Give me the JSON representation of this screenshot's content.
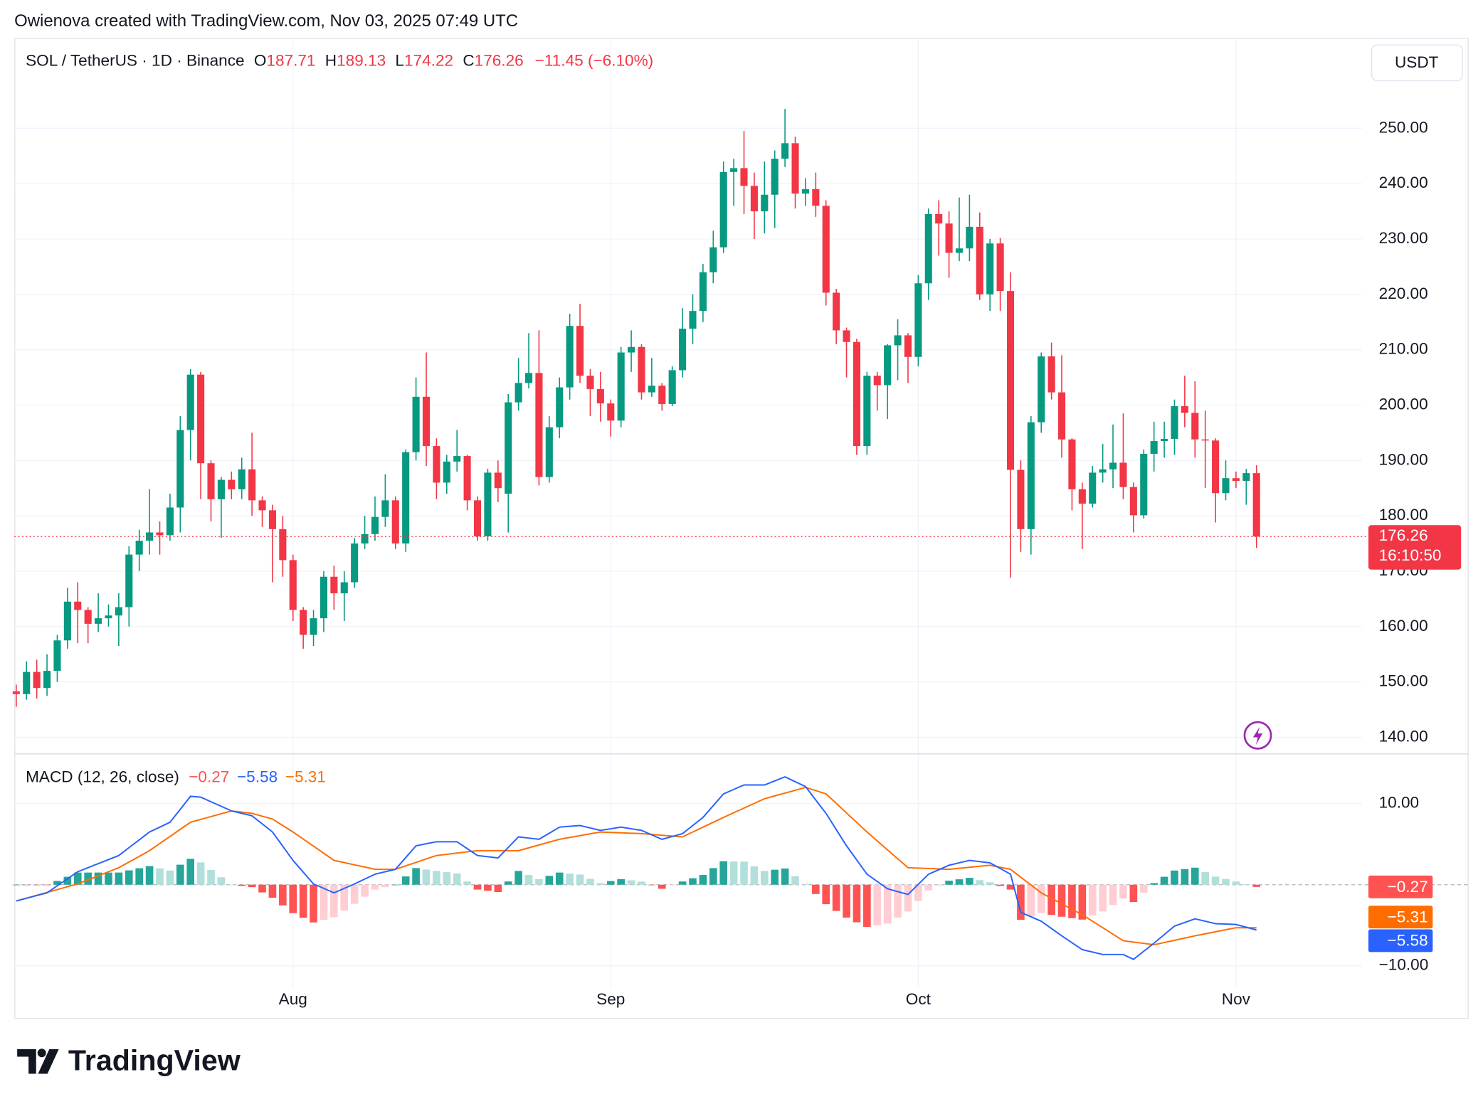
{
  "attribution": "Owienova created with TradingView.com, Nov 03, 2025 07:49 UTC",
  "logo_text": "TradingView",
  "chart_data": [
    {
      "type": "candlestick",
      "title": "SOL / TetherUS · 1D · Binance",
      "ohlc_labels": [
        "O",
        "H",
        "L",
        "C"
      ],
      "change": "−11.45 (−6.10%)",
      "currency": "USDT",
      "countdown": "16:10:50",
      "up_color": "#089981",
      "down_color": "#f23645",
      "grid": true,
      "ylim": [
        137.1,
        266
      ],
      "yticks": [
        {
          "value": 140,
          "label": "140.00"
        },
        {
          "value": 150,
          "label": "150.00"
        },
        {
          "value": 160,
          "label": "160.00"
        },
        {
          "value": 170,
          "label": "170.00"
        },
        {
          "value": 180,
          "label": "180.00"
        },
        {
          "value": 190,
          "label": "190.00"
        },
        {
          "value": 200,
          "label": "200.00"
        },
        {
          "value": 210,
          "label": "210.00"
        },
        {
          "value": 220,
          "label": "220.00"
        },
        {
          "value": 230,
          "label": "230.00"
        },
        {
          "value": 240,
          "label": "240.00"
        },
        {
          "value": 250,
          "label": "250.00"
        }
      ],
      "categories": [
        null,
        null,
        null,
        null,
        null,
        null,
        null,
        null,
        null,
        null,
        null,
        null,
        null,
        null,
        null,
        null,
        null,
        null,
        null,
        null,
        null,
        null,
        null,
        null,
        null,
        null,
        null,
        "Aug",
        null,
        null,
        null,
        null,
        null,
        null,
        null,
        null,
        null,
        null,
        null,
        null,
        null,
        null,
        null,
        null,
        null,
        null,
        null,
        null,
        null,
        null,
        null,
        null,
        null,
        null,
        null,
        null,
        null,
        null,
        "Sep",
        null,
        null,
        null,
        null,
        null,
        null,
        null,
        null,
        null,
        null,
        null,
        null,
        null,
        null,
        null,
        null,
        null,
        null,
        null,
        null,
        null,
        null,
        null,
        null,
        null,
        null,
        null,
        null,
        null,
        "Oct",
        null,
        null,
        null,
        null,
        null,
        null,
        null,
        null,
        null,
        null,
        null,
        null,
        null,
        null,
        null,
        null,
        null,
        null,
        null,
        null,
        null,
        null,
        null,
        null,
        null,
        null,
        null,
        null,
        null,
        null,
        "Nov",
        null,
        null
      ],
      "open": [
        148.3,
        147.8,
        151.8,
        148.9,
        152,
        157.5,
        164.5,
        163,
        160.5,
        161.5,
        162,
        163.5,
        173,
        175.5,
        177,
        176.5,
        181.5,
        195.5,
        205.5,
        189.5,
        183,
        186.5,
        184.8,
        188.4,
        182.8,
        181,
        177.6,
        172,
        163,
        158.5,
        161.5,
        169,
        166,
        168,
        175,
        176.7,
        179.8,
        182.8,
        175,
        191.5,
        201.5,
        192.6,
        186,
        189.8,
        190.8,
        182.8,
        176.3,
        187.8,
        184,
        200.5,
        204,
        205.8,
        187,
        196,
        203.2,
        214.3,
        205.3,
        202.9,
        200.3,
        197.2,
        209.5,
        210.5,
        202.3,
        203.5,
        200.2,
        206.3,
        213.8,
        217,
        224,
        228.5,
        242.1,
        242.8,
        239.6,
        235,
        238,
        244.5,
        247.3,
        238.2,
        239,
        236,
        220.3,
        213.5,
        211.4,
        192.6,
        205.3,
        203.6,
        210.8,
        212.6,
        208.7,
        222,
        234.5,
        232.8,
        227.5,
        228.3,
        232.2,
        220,
        229.2,
        220.6,
        188.3,
        177.6,
        196.9,
        208.8,
        202.3,
        193.8,
        184.8,
        182.2,
        187.8,
        188.4,
        189.6,
        185.2,
        180.1,
        191.2,
        193.5,
        193.9,
        199.8,
        198.6,
        193.8,
        193.6,
        184.1,
        186.8,
        186.3,
        187.71
      ],
      "high": [
        149.5,
        153.7,
        154,
        155,
        158.5,
        167,
        168,
        163.5,
        166,
        164,
        166,
        174.5,
        177.5,
        184.8,
        179,
        184,
        198,
        206.5,
        206,
        190,
        187,
        188,
        190.5,
        195,
        183.5,
        182,
        180,
        173,
        163.5,
        163,
        170,
        171,
        170,
        176,
        180,
        183.5,
        187.5,
        183.5,
        192,
        205,
        209.5,
        194,
        191,
        195.5,
        191,
        183.5,
        188.5,
        190,
        202,
        208.5,
        213,
        213.5,
        198,
        205,
        216.5,
        218.3,
        206.5,
        206,
        201,
        210.5,
        213.5,
        211,
        208.5,
        204,
        207,
        217.5,
        220,
        225.5,
        231.5,
        244,
        244.5,
        249.5,
        242,
        244,
        246,
        253.5,
        248.5,
        241,
        242,
        237,
        221,
        214,
        212,
        206,
        206,
        211,
        215.5,
        213,
        223.5,
        235.5,
        237,
        235,
        237.5,
        238,
        234.8,
        230,
        230.2,
        224,
        190,
        198,
        209.5,
        211.3,
        209,
        194,
        186,
        189,
        193,
        196.5,
        198.5,
        186,
        192,
        197,
        197,
        201,
        205.3,
        204.3,
        199,
        194,
        190,
        188,
        188.5,
        189.13
      ],
      "low": [
        145.5,
        146.8,
        147,
        147.5,
        150,
        156,
        157,
        157,
        159,
        160,
        156.5,
        160,
        170,
        173,
        173,
        175.5,
        177,
        190,
        183,
        179,
        176,
        183,
        183,
        180,
        178,
        168,
        169,
        161,
        156,
        156.5,
        159,
        163,
        161,
        167,
        174,
        175.5,
        178,
        174,
        173.5,
        190,
        189,
        183,
        184,
        188,
        181,
        175.5,
        175.5,
        182.5,
        177,
        199,
        203,
        185.5,
        186,
        194,
        201,
        204,
        198,
        197,
        194.3,
        196,
        206,
        201,
        201.5,
        199,
        199.8,
        205,
        211,
        215,
        222,
        227.5,
        236,
        234.5,
        230,
        231,
        232,
        243,
        235.5,
        236,
        234,
        218,
        211,
        205,
        191,
        191,
        199,
        197.5,
        204.5,
        204,
        207,
        219,
        227,
        223,
        226,
        226,
        219,
        217,
        217,
        168.8,
        173.5,
        173,
        195,
        201,
        190.5,
        181,
        174,
        181.5,
        186,
        185,
        183,
        177,
        179.5,
        188,
        190.5,
        191,
        196,
        190.5,
        185,
        178.8,
        182.8,
        185,
        182,
        174.22
      ],
      "close": [
        147.8,
        151.8,
        148.9,
        152,
        157.5,
        164.5,
        163,
        160.5,
        161.5,
        162,
        163.5,
        173,
        175.5,
        177,
        176.5,
        181.5,
        195.5,
        205.5,
        189.5,
        183,
        186.5,
        184.8,
        188.4,
        182.8,
        181,
        177.6,
        172,
        163,
        158.5,
        161.5,
        169,
        166,
        168,
        175,
        176.7,
        179.8,
        182.8,
        175,
        191.5,
        201.5,
        192.6,
        186,
        189.8,
        190.8,
        182.8,
        176.3,
        187.8,
        185,
        200.5,
        204,
        205.8,
        187,
        196,
        203.2,
        214.3,
        205.3,
        202.9,
        200.3,
        197.2,
        209.5,
        210.5,
        202.3,
        203.5,
        200.2,
        206.3,
        213.8,
        217,
        224,
        228.5,
        242.1,
        242.8,
        239.6,
        235,
        238,
        244.5,
        247.3,
        238.2,
        239,
        236,
        220.3,
        213.5,
        211.4,
        192.6,
        205.3,
        203.6,
        210.8,
        212.6,
        208.7,
        222,
        234.5,
        232.8,
        227.5,
        228.3,
        232.2,
        220,
        229.2,
        220.6,
        188.3,
        177.6,
        196.9,
        208.8,
        202.3,
        193.8,
        184.8,
        182.2,
        187.8,
        188.4,
        189.6,
        185.2,
        180.1,
        191.2,
        193.5,
        193.9,
        199.8,
        198.6,
        193.8,
        193.6,
        184.1,
        186.8,
        186.3,
        187.71,
        176.26
      ]
    },
    {
      "type": "macd",
      "title": "MACD (12, 26, close)",
      "ylim": [
        -12.7,
        16.2
      ],
      "yticks": [
        {
          "value": 10,
          "label": "10.00"
        },
        {
          "value": -10,
          "label": "−10.00"
        }
      ],
      "histogram": {
        "colors": {
          "grow_above": "#26a69a",
          "fall_above": "#b2dfdb",
          "grow_below": "#ffcdd2",
          "fall_below": "#ff5252"
        },
        "last_label": "−0.27",
        "values": [
          0,
          -0.02,
          -0.03,
          -0.05,
          0.47,
          0.98,
          1.5,
          1.5,
          1.5,
          1.5,
          1.5,
          1.77,
          2.03,
          2.3,
          2.02,
          1.75,
          2.47,
          3.2,
          2.75,
          1.83,
          0.92,
          0,
          -0.15,
          -0.3,
          -0.95,
          -1.6,
          -2.55,
          -3.5,
          -4.08,
          -4.65,
          -4.33,
          -4,
          -3.18,
          -2.35,
          -1.48,
          -0.6,
          -0.3,
          0,
          1.02,
          2.05,
          1.87,
          1.7,
          1.55,
          1.4,
          0.4,
          -0.6,
          -0.75,
          -0.9,
          0.4,
          1.7,
          1.2,
          0.7,
          1.1,
          1.5,
          1.37,
          1.25,
          0.72,
          0.2,
          0.45,
          0.7,
          0.55,
          0.4,
          -0.05,
          -0.5,
          -0.05,
          0.4,
          0.8,
          1.2,
          2.05,
          2.9,
          2.87,
          2.85,
          2.27,
          1.7,
          1.85,
          2,
          1.05,
          0.1,
          -1.15,
          -2.4,
          -3.23,
          -4.05,
          -4.63,
          -5.2,
          -5,
          -4.8,
          -4.05,
          -3.3,
          -2,
          -0.7,
          -0.1,
          0.5,
          0.67,
          0.85,
          0.57,
          0.3,
          -0.15,
          -0.6,
          -4.33,
          -3.92,
          -3.5,
          -3.72,
          -3.95,
          -4.12,
          -4.3,
          -3.8,
          -3.3,
          -2.5,
          -1.7,
          -2.13,
          -0.97,
          0.2,
          0.98,
          1.75,
          1.93,
          2.1,
          1.55,
          1,
          0.7,
          0.4,
          0.07,
          -0.27
        ]
      },
      "macd": {
        "color": "#2962ff",
        "last_label": "−5.58",
        "values": [
          -2,
          -1.67,
          -1.33,
          -1,
          -0.13,
          0.73,
          1.6,
          2.1,
          2.6,
          3.1,
          3.6,
          4.57,
          5.53,
          6.5,
          7.1,
          7.7,
          9.3,
          10.9,
          10.8,
          10.23,
          9.67,
          9.1,
          8.8,
          8.5,
          7.5,
          6.5,
          4.75,
          3,
          1.55,
          0.1,
          -0.45,
          -1,
          -0.45,
          0.1,
          0.7,
          1.3,
          1.6,
          1.9,
          3.35,
          4.8,
          5.05,
          5.3,
          5.3,
          5.3,
          4.45,
          3.6,
          3.45,
          3.3,
          4.6,
          5.9,
          5.75,
          5.6,
          6.35,
          7.1,
          7.2,
          7.3,
          7,
          6.7,
          6.9,
          7.1,
          6.9,
          6.7,
          6.15,
          5.6,
          5.95,
          6.3,
          7.3,
          8.3,
          9.75,
          11.2,
          11.75,
          12.3,
          12.3,
          12.3,
          12.8,
          13.3,
          12.7,
          12.1,
          10.45,
          8.8,
          6.8,
          4.8,
          3.05,
          1.3,
          0.4,
          -0.5,
          -0.85,
          -1.2,
          0.05,
          1.3,
          1.85,
          2.4,
          2.7,
          3,
          2.85,
          2.7,
          2,
          1.3,
          -3.4,
          -3.95,
          -4.5,
          -5.4,
          -6.3,
          -7.15,
          -8,
          -8.3,
          -8.6,
          -8.6,
          -8.6,
          -9.2,
          -8.2,
          -7.2,
          -6.15,
          -5.1,
          -4.65,
          -4.2,
          -4.5,
          -4.8,
          -4.85,
          -4.9,
          -5.24,
          -5.58
        ]
      },
      "signal": {
        "color": "#ff6d00",
        "last_label": "−5.31",
        "values": [
          -2,
          -1.65,
          -1.3,
          -0.95,
          -0.6,
          -0.25,
          0.1,
          0.6,
          1.1,
          1.6,
          2.1,
          2.8,
          3.5,
          4.2,
          5.08,
          5.95,
          6.83,
          7.7,
          8.05,
          8.4,
          8.75,
          9.1,
          8.95,
          8.8,
          8.45,
          8.1,
          7.3,
          6.5,
          5.63,
          4.75,
          3.88,
          3,
          2.73,
          2.45,
          2.18,
          1.9,
          1.9,
          1.9,
          2.33,
          2.75,
          3.18,
          3.6,
          3.75,
          3.9,
          4.05,
          4.2,
          4.2,
          4.2,
          4.2,
          4.2,
          4.55,
          4.9,
          5.25,
          5.6,
          5.83,
          6.05,
          6.28,
          6.5,
          6.45,
          6.4,
          6.35,
          6.3,
          6.2,
          6.1,
          6,
          5.9,
          6.5,
          7.1,
          7.7,
          8.3,
          8.88,
          9.45,
          10.03,
          10.6,
          10.95,
          11.3,
          11.65,
          12,
          11.6,
          11.2,
          10.03,
          8.85,
          7.68,
          6.5,
          5.4,
          4.3,
          3.2,
          2.1,
          2.05,
          2,
          1.95,
          1.9,
          2.03,
          2.15,
          2.28,
          2.4,
          2.15,
          1.9,
          0.93,
          -0.03,
          -1,
          -1.68,
          -2.35,
          -3.03,
          -3.7,
          -4.5,
          -5.3,
          -6.1,
          -6.9,
          -7.07,
          -7.23,
          -7.4,
          -7.13,
          -6.85,
          -6.58,
          -6.3,
          -6.05,
          -5.8,
          -5.55,
          -5.3,
          -5.31,
          -5.31
        ]
      }
    }
  ]
}
